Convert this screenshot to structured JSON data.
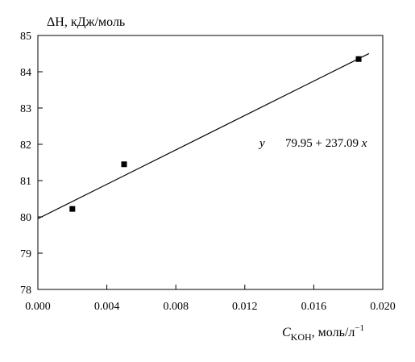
{
  "chart_data": {
    "type": "scatter",
    "title": "",
    "ylabel": "ΔH, кДж/моль",
    "xlabel_main": "C",
    "xlabel_sub": "KOH",
    "xlabel_unit": ", моль/л",
    "xlabel_sup": "−1",
    "xlim": [
      0.0,
      0.02
    ],
    "ylim": [
      78,
      85
    ],
    "x_ticks": [
      0.0,
      0.004,
      0.008,
      0.012,
      0.016,
      0.02
    ],
    "x_tick_labels": [
      "0.000",
      "0.004",
      "0.008",
      "0.012",
      "0.016",
      "0.020"
    ],
    "y_ticks": [
      78,
      79,
      80,
      81,
      82,
      83,
      84,
      85
    ],
    "y_tick_labels": [
      "78",
      "79",
      "80",
      "81",
      "82",
      "83",
      "84",
      "85"
    ],
    "points": [
      {
        "x": 0.002,
        "y": 80.22
      },
      {
        "x": 0.005,
        "y": 81.45
      },
      {
        "x": 0.0186,
        "y": 84.35
      }
    ],
    "fit_line": {
      "intercept": 79.95,
      "slope": 237.09,
      "x_range": [
        0.0,
        0.0192
      ]
    },
    "equation": {
      "y_symbol": "y",
      "rhs": "79.95 + 237.09 ",
      "x_symbol": "x"
    },
    "grid": false,
    "marker_color": "#000000",
    "line_color": "#000000"
  }
}
